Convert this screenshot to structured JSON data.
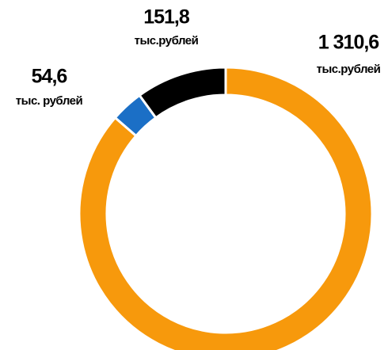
{
  "chart_data": {
    "type": "pie",
    "values": [
      1310.6,
      54.6,
      151.8
    ],
    "value_labels": [
      "1 310,6",
      "54,6",
      "151,8"
    ],
    "unit_labels": [
      "тыс.рублей",
      "тыс. рублей",
      "тыс.рублей"
    ],
    "colors": [
      "#f7990c",
      "#1b6fc6",
      "#000000"
    ],
    "donut": true
  }
}
